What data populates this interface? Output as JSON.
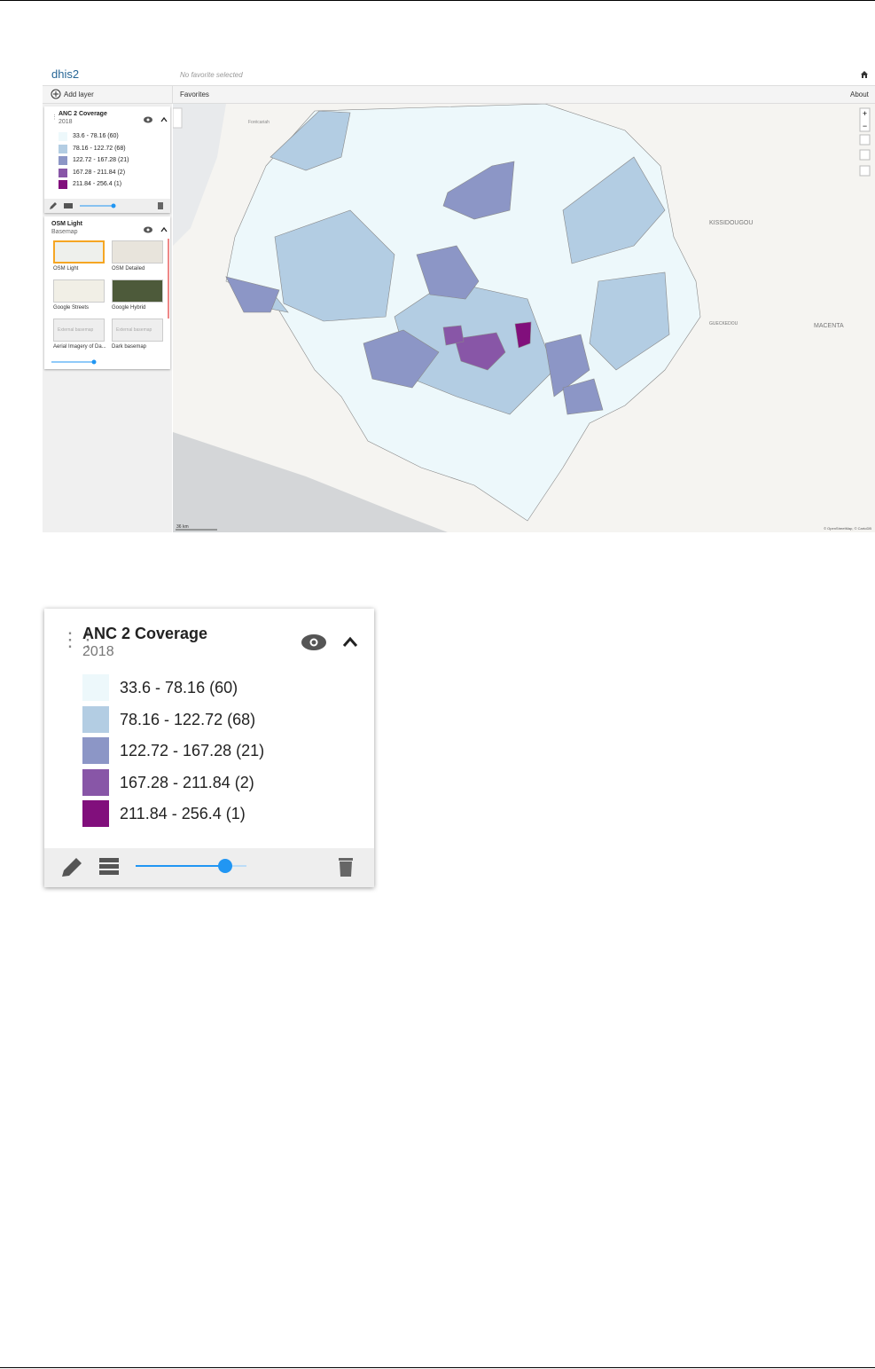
{
  "header": {
    "logo": "dhis2",
    "favorite": "No favorite selected"
  },
  "toolbar": {
    "add_layer": "Add layer",
    "favorites": "Favorites",
    "about": "About"
  },
  "layer": {
    "title": "ANC 2 Coverage",
    "period": "2018",
    "legend": [
      {
        "label": "33.6 - 78.16 (60)",
        "color": "#edf8fb"
      },
      {
        "label": "78.16 - 122.72 (68)",
        "color": "#b3cde3"
      },
      {
        "label": "122.72 - 167.28 (21)",
        "color": "#8c96c6"
      },
      {
        "label": "167.28 - 211.84 (2)",
        "color": "#8856a7"
      },
      {
        "label": "211.84 - 256.4 (1)",
        "color": "#810f7c"
      }
    ]
  },
  "basemap": {
    "title": "OSM Light",
    "subtitle": "Basemap",
    "options": [
      {
        "label": "OSM Light"
      },
      {
        "label": "OSM Detailed"
      },
      {
        "label": "Google Streets"
      },
      {
        "label": "Google Hybrid"
      },
      {
        "label": "Aerial Imagery of Da...",
        "placeholder": "External basemap"
      },
      {
        "label": "Dark basemap",
        "placeholder": "External basemap"
      }
    ]
  },
  "map": {
    "places": [
      "KISSIDOUGOU",
      "GUECKEDOU",
      "MACENTA",
      "Forécariah"
    ],
    "scale": "36 km",
    "attribution": "© OpenStreetMap, © CartoDB"
  }
}
